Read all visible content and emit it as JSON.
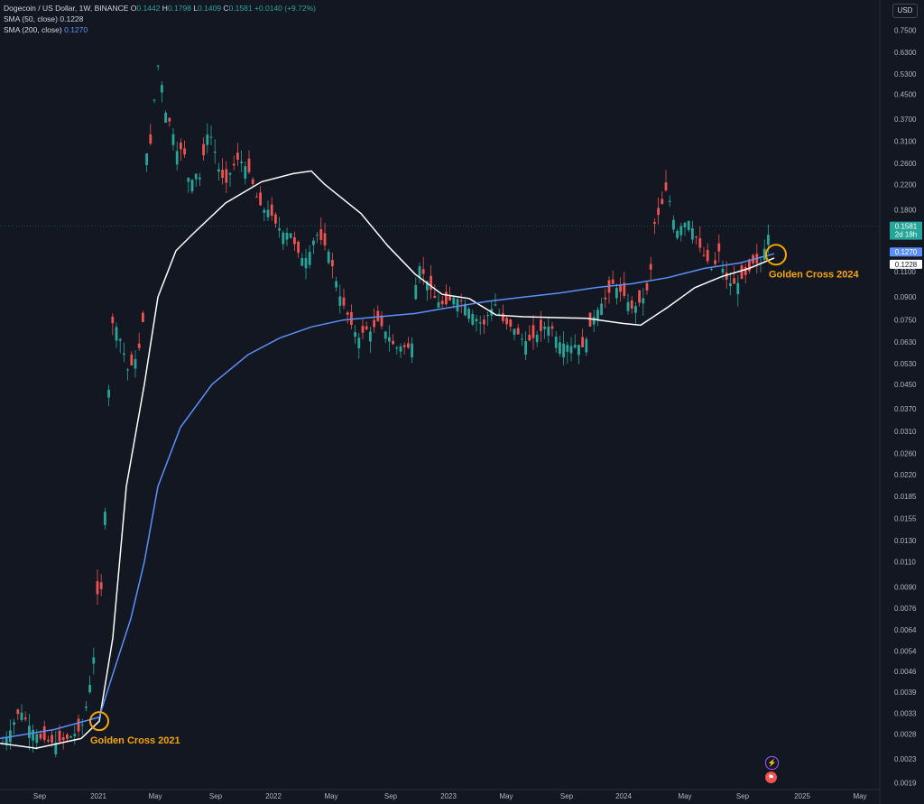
{
  "header": {
    "symbol": "Dogecoin / US Dollar, 1W, BINANCE",
    "open_label": "O",
    "open": "0.1442",
    "high_label": "H",
    "high": "0.1798",
    "low_label": "L",
    "low": "0.1409",
    "close_label": "C",
    "close": "0.1581",
    "change": "+0.0140 (+9.72%)",
    "sma50_label": "SMA (50, close)",
    "sma50_value": "0.1228",
    "sma200_label": "SMA (200, close)",
    "sma200_value": "0.1270"
  },
  "currency_button": "USD",
  "colors": {
    "background": "#131722",
    "up": "#26a69a",
    "down": "#ef5350",
    "sma50": "#ffffff",
    "sma200": "#5b8ff9",
    "annotation": "#f7a600"
  },
  "icons": [
    "lightning-icon",
    "flag-icon"
  ],
  "chart_data": {
    "type": "candlestick",
    "y_scale": "log",
    "ylim": [
      0.0018,
      0.9
    ],
    "y_ticks": [
      "0.7500",
      "0.6300",
      "0.5300",
      "0.4500",
      "0.3700",
      "0.3100",
      "0.2600",
      "0.2200",
      "0.1800",
      "0.1100",
      "0.0900",
      "0.0750",
      "0.0630",
      "0.0530",
      "0.0450",
      "0.0370",
      "0.0310",
      "0.0260",
      "0.0220",
      "0.0185",
      "0.0155",
      "0.0130",
      "0.0110",
      "0.0090",
      "0.0076",
      "0.0064",
      "0.0054",
      "0.0046",
      "0.0039",
      "0.0033",
      "0.0028",
      "0.0023",
      "0.0019"
    ],
    "x_ticks": [
      "Sep",
      "2021",
      "May",
      "Sep",
      "2022",
      "May",
      "Sep",
      "2023",
      "May",
      "Sep",
      "2024",
      "May",
      "Sep",
      "2025",
      "May"
    ],
    "price_tags": [
      {
        "label": "0.1581",
        "sub": "2d 18h",
        "value": 0.1581,
        "color": "#26a69a"
      },
      {
        "label": "0.1270",
        "value": 0.127,
        "color": "#5b8ff9"
      },
      {
        "label": "0.1228",
        "value": 0.1228,
        "color": "#ffffff"
      }
    ],
    "series": [
      {
        "name": "SMA (50, close)",
        "color": "#ffffff",
        "points": [
          [
            0,
            0.0026
          ],
          [
            40,
            0.0025
          ],
          [
            90,
            0.0027
          ],
          [
            110,
            0.0031
          ],
          [
            125,
            0.006
          ],
          [
            140,
            0.02
          ],
          [
            160,
            0.045
          ],
          [
            175,
            0.09
          ],
          [
            195,
            0.13
          ],
          [
            215,
            0.15
          ],
          [
            250,
            0.19
          ],
          [
            290,
            0.225
          ],
          [
            325,
            0.24
          ],
          [
            345,
            0.245
          ],
          [
            360,
            0.22
          ],
          [
            400,
            0.175
          ],
          [
            430,
            0.135
          ],
          [
            460,
            0.108
          ],
          [
            490,
            0.092
          ],
          [
            520,
            0.089
          ],
          [
            550,
            0.078
          ],
          [
            580,
            0.077
          ],
          [
            650,
            0.076
          ],
          [
            690,
            0.073
          ],
          [
            710,
            0.072
          ],
          [
            740,
            0.083
          ],
          [
            770,
            0.097
          ],
          [
            800,
            0.106
          ],
          [
            830,
            0.113
          ],
          [
            858,
            0.1228
          ]
        ]
      },
      {
        "name": "SMA (200, close)",
        "color": "#5b8ff9",
        "points": [
          [
            0,
            0.0027
          ],
          [
            60,
            0.0029
          ],
          [
            110,
            0.0032
          ],
          [
            125,
            0.0045
          ],
          [
            145,
            0.007
          ],
          [
            160,
            0.011
          ],
          [
            175,
            0.02
          ],
          [
            200,
            0.032
          ],
          [
            235,
            0.045
          ],
          [
            275,
            0.057
          ],
          [
            310,
            0.065
          ],
          [
            345,
            0.071
          ],
          [
            380,
            0.075
          ],
          [
            420,
            0.077
          ],
          [
            460,
            0.079
          ],
          [
            500,
            0.083
          ],
          [
            540,
            0.087
          ],
          [
            580,
            0.09
          ],
          [
            620,
            0.093
          ],
          [
            660,
            0.097
          ],
          [
            700,
            0.1
          ],
          [
            740,
            0.105
          ],
          [
            780,
            0.113
          ],
          [
            820,
            0.118
          ],
          [
            858,
            0.127
          ]
        ]
      }
    ],
    "annotations": [
      {
        "text": "Golden Cross 2021",
        "x": 110,
        "y": 0.0031
      },
      {
        "text": "Golden Cross 2024",
        "x": 860,
        "y": 0.126
      }
    ]
  }
}
